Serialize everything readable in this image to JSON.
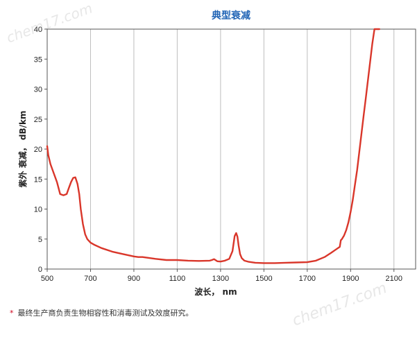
{
  "colors": {
    "title": "#1f63b5",
    "curve": "#d9362a",
    "grid": "#bdbdbd",
    "star": "#d0021b"
  },
  "watermarks": [
    "chem17.com",
    "chem17.com"
  ],
  "footnote": {
    "star": "*",
    "text": "最终生产商负责生物相容性和消毒测试及效度研究。"
  },
  "chart_data": {
    "type": "line",
    "title": "典型衰减",
    "xlabel": "波长， nm",
    "ylabel": "紫外 衰减， dB/km",
    "xlim": [
      500,
      2200
    ],
    "ylim": [
      0,
      40
    ],
    "xticks": [
      500,
      700,
      900,
      1100,
      1300,
      1500,
      1700,
      1900,
      2100
    ],
    "yticks": [
      0,
      5,
      10,
      15,
      20,
      25,
      30,
      35,
      40
    ],
    "grid": {
      "x": true,
      "y": false
    },
    "series": [
      {
        "color": "#d9362a",
        "x": [
          500,
          505,
          515,
          530,
          545,
          560,
          575,
          590,
          600,
          610,
          620,
          630,
          640,
          648,
          655,
          665,
          675,
          685,
          700,
          720,
          750,
          800,
          850,
          900,
          920,
          940,
          960,
          1000,
          1050,
          1100,
          1150,
          1200,
          1250,
          1260,
          1270,
          1285,
          1300,
          1320,
          1340,
          1355,
          1365,
          1372,
          1378,
          1383,
          1390,
          1398,
          1410,
          1430,
          1460,
          1500,
          1550,
          1600,
          1650,
          1700,
          1740,
          1780,
          1810,
          1830,
          1850,
          1855,
          1860,
          1870,
          1880,
          1890,
          1900,
          1910,
          1920,
          1930,
          1940,
          1950,
          1960,
          1970,
          1980,
          1990,
          2000,
          2010,
          2020,
          2030,
          2033
        ],
        "y": [
          20.5,
          19.0,
          17.5,
          16.0,
          14.5,
          12.5,
          12.3,
          12.5,
          13.5,
          14.5,
          15.2,
          15.3,
          14.2,
          12.5,
          10.0,
          7.5,
          5.8,
          5.0,
          4.4,
          4.0,
          3.5,
          2.9,
          2.5,
          2.1,
          2.0,
          2.0,
          1.9,
          1.7,
          1.5,
          1.5,
          1.4,
          1.35,
          1.4,
          1.5,
          1.65,
          1.3,
          1.25,
          1.4,
          1.7,
          3.0,
          5.5,
          6.0,
          5.4,
          4.0,
          2.5,
          1.8,
          1.4,
          1.2,
          1.05,
          1.0,
          1.0,
          1.05,
          1.1,
          1.15,
          1.4,
          2.0,
          2.7,
          3.2,
          3.7,
          4.8,
          5.0,
          5.6,
          6.5,
          7.8,
          9.5,
          11.5,
          14.0,
          16.5,
          19.5,
          22.5,
          25.5,
          28.5,
          31.5,
          34.5,
          37.5,
          40.0,
          40.0,
          40.0,
          40.0
        ]
      }
    ]
  }
}
